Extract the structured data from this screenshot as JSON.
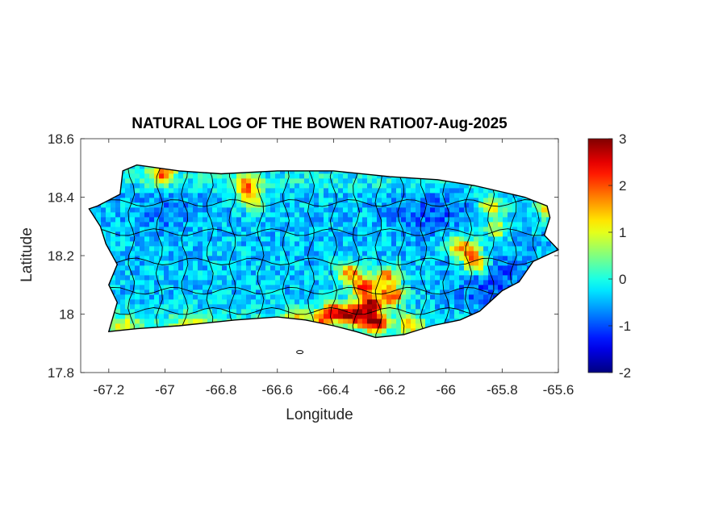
{
  "figure": {
    "title": "NATURAL LOG OF THE BOWEN RATIO07-Aug-2025",
    "xlabel": "Longitude",
    "ylabel": "Latitude"
  },
  "map": {
    "region": "Puerto Rico",
    "projection": "plate-carree (lon/lat)",
    "xlim": [
      -67.3,
      -65.6
    ],
    "ylim": [
      17.8,
      18.6
    ],
    "xticks": [
      -67.2,
      -67,
      -66.8,
      -66.6,
      -66.4,
      -66.2,
      -66,
      -65.8,
      -65.6
    ],
    "xtick_labels": [
      "-67.2",
      "-67",
      "-66.8",
      "-66.6",
      "-66.4",
      "-66.2",
      "-66",
      "-65.8",
      "-65.6"
    ],
    "yticks": [
      17.8,
      18,
      18.2,
      18.4,
      18.6
    ],
    "ytick_labels": [
      "17.8",
      "18",
      "18.2",
      "18.4",
      "18.6"
    ],
    "colormap": "jet",
    "colorbar": {
      "range": [
        -2,
        3
      ],
      "ticks": [
        -2,
        -1,
        0,
        1,
        2,
        3
      ],
      "tick_labels": [
        "-2",
        "-1",
        "0",
        "1",
        "2",
        "3"
      ]
    },
    "colors": {
      "jet": [
        "#00008f",
        "#0000ff",
        "#0080ff",
        "#00ffff",
        "#80ff80",
        "#ffff00",
        "#ff8000",
        "#ff0000",
        "#800000"
      ],
      "boundary": "#000000",
      "axes": "#262626"
    },
    "outline_lonlat": [
      [
        -67.24,
        18.37
      ],
      [
        -67.16,
        18.41
      ],
      [
        -67.15,
        18.49
      ],
      [
        -67.1,
        18.51
      ],
      [
        -66.95,
        18.49
      ],
      [
        -66.8,
        18.48
      ],
      [
        -66.6,
        18.49
      ],
      [
        -66.4,
        18.49
      ],
      [
        -66.2,
        18.47
      ],
      [
        -66.03,
        18.46
      ],
      [
        -65.9,
        18.44
      ],
      [
        -65.72,
        18.4
      ],
      [
        -65.64,
        18.37
      ],
      [
        -65.63,
        18.33
      ],
      [
        -65.65,
        18.27
      ],
      [
        -65.6,
        18.22
      ],
      [
        -65.69,
        18.18
      ],
      [
        -65.74,
        18.11
      ],
      [
        -65.8,
        18.08
      ],
      [
        -65.88,
        18.01
      ],
      [
        -65.95,
        17.98
      ],
      [
        -66.05,
        17.96
      ],
      [
        -66.15,
        17.93
      ],
      [
        -66.25,
        17.92
      ],
      [
        -66.32,
        17.94
      ],
      [
        -66.4,
        17.96
      ],
      [
        -66.5,
        17.98
      ],
      [
        -66.6,
        17.99
      ],
      [
        -66.75,
        17.98
      ],
      [
        -66.85,
        17.97
      ],
      [
        -66.95,
        17.96
      ],
      [
        -67.1,
        17.95
      ],
      [
        -67.2,
        17.94
      ],
      [
        -67.17,
        18.04
      ],
      [
        -67.2,
        18.1
      ],
      [
        -67.17,
        18.17
      ],
      [
        -67.21,
        18.24
      ],
      [
        -67.23,
        18.3
      ],
      [
        -67.27,
        18.36
      ]
    ],
    "hotspots_lonlat": [
      [
        -66.26,
        17.98,
        1.0
      ],
      [
        -66.28,
        18.04,
        0.9
      ],
      [
        -66.34,
        18.0,
        0.85
      ],
      [
        -66.4,
        18.02,
        0.7
      ],
      [
        -66.2,
        18.07,
        0.8
      ],
      [
        -66.3,
        18.1,
        0.75
      ],
      [
        -66.35,
        18.15,
        0.65
      ],
      [
        -66.22,
        18.14,
        0.6
      ],
      [
        -66.13,
        17.97,
        0.55
      ],
      [
        -66.45,
        17.99,
        0.5
      ],
      [
        -66.55,
        18.0,
        0.35
      ],
      [
        -65.9,
        18.18,
        0.75
      ],
      [
        -65.93,
        18.23,
        0.6
      ],
      [
        -65.85,
        18.38,
        0.55
      ],
      [
        -65.83,
        18.3,
        0.45
      ],
      [
        -67.02,
        18.49,
        0.7
      ],
      [
        -66.72,
        18.45,
        0.6
      ],
      [
        -66.7,
        18.4,
        0.45
      ],
      [
        -65.64,
        18.37,
        0.55
      ],
      [
        -65.98,
        18.25,
        0.35
      ],
      [
        -67.15,
        17.96,
        0.35
      ],
      [
        -66.92,
        17.97,
        0.4
      ]
    ],
    "hotspots_comment": "approximate centers (lon, lat) of the high-value region; third number is relative strength 0-1 (not in data units)"
  }
}
